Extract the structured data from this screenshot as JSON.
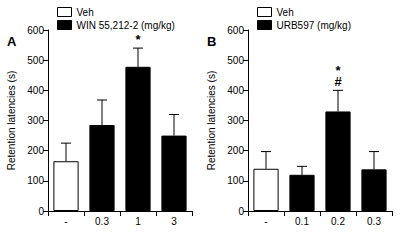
{
  "chart_data": [
    {
      "type": "bar",
      "title": "A",
      "ylabel": "Retention latencies (s)",
      "categories": [
        "-",
        "0.3",
        "1",
        "3"
      ],
      "series": [
        {
          "name": "Veh",
          "color": "#ffffff",
          "values": [
            165,
            null,
            null,
            null
          ],
          "errors": [
            60,
            null,
            null,
            null
          ]
        },
        {
          "name": "WIN 55,212-2 (mg/kg)",
          "color": "#000000",
          "values": [
            null,
            285,
            478,
            250
          ],
          "errors": [
            null,
            83,
            62,
            70
          ]
        }
      ],
      "ylim": [
        0,
        600
      ],
      "yticks": [
        0,
        100,
        200,
        300,
        400,
        500,
        600
      ],
      "grid": false,
      "legend": "top-left",
      "annotations": [
        {
          "category": "1",
          "text": "*"
        }
      ]
    },
    {
      "type": "bar",
      "title": "B",
      "ylabel": "Retention latencies (s)",
      "categories": [
        "-",
        "0.1",
        "0.2",
        "0.3"
      ],
      "series": [
        {
          "name": "Veh",
          "color": "#ffffff",
          "values": [
            140,
            null,
            null,
            null
          ],
          "errors": [
            57,
            null,
            null,
            null
          ]
        },
        {
          "name": "URB597 (mg/kg)",
          "color": "#000000",
          "values": [
            null,
            120,
            330,
            138
          ],
          "errors": [
            null,
            28,
            70,
            59
          ]
        }
      ],
      "ylim": [
        0,
        600
      ],
      "yticks": [
        0,
        100,
        200,
        300,
        400,
        500,
        600
      ],
      "grid": false,
      "legend": "top-left",
      "annotations": [
        {
          "category": "0.2",
          "text": "*"
        },
        {
          "category": "0.2",
          "text": "#"
        }
      ]
    }
  ]
}
